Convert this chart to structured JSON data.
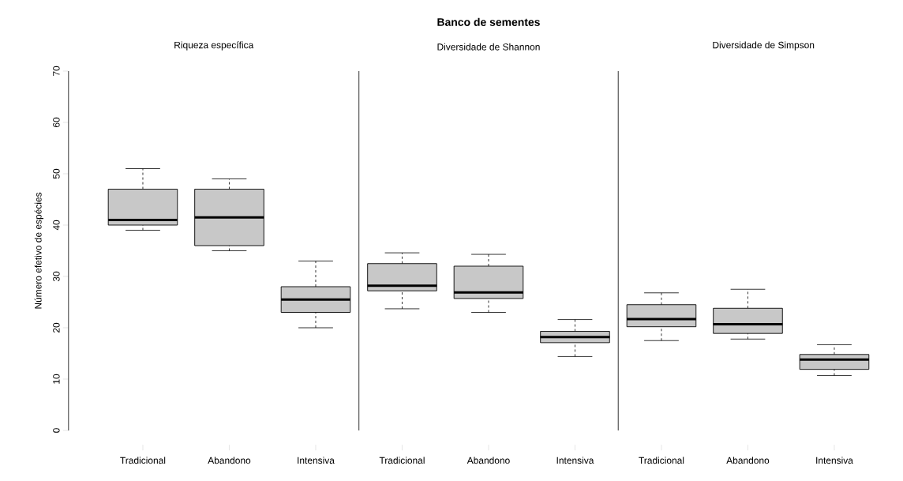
{
  "chart_data": [
    {
      "type": "box",
      "subtitle": "Riqueza específica",
      "ylabel": "Número efetivo de espécies",
      "categories": [
        "Tradicional",
        "Abandono",
        "Intensiva"
      ],
      "ylim": [
        0,
        70
      ],
      "yticks": [
        0,
        10,
        20,
        30,
        40,
        50,
        60,
        70
      ],
      "series": [
        {
          "color": "#c8c8c8",
          "boxes": [
            {
              "low": 39,
              "q1": 40,
              "median": 41,
              "q3": 47,
              "high": 51
            },
            {
              "low": 35,
              "q1": 36,
              "median": 41.5,
              "q3": 47,
              "high": 49
            },
            {
              "low": 20,
              "q1": 23,
              "median": 25.5,
              "q3": 28,
              "high": 33
            }
          ]
        }
      ]
    },
    {
      "type": "box",
      "title": "Banco de sementes",
      "subtitle": "Diversidade de Shannon",
      "categories": [
        "Tradicional",
        "Abandono",
        "Intensiva"
      ],
      "ylim": [
        0,
        70
      ],
      "tick_labels": "x",
      "series": [
        {
          "color": "#c8c8c8",
          "boxes": [
            {
              "low": 23.7,
              "q1": 27.2,
              "median": 28.2,
              "q3": 32.5,
              "high": 34.6
            },
            {
              "low": 23.0,
              "q1": 25.7,
              "median": 26.9,
              "q3": 32.0,
              "high": 34.3
            },
            {
              "low": 14.4,
              "q1": 17.1,
              "median": 18.2,
              "q3": 19.3,
              "high": 21.6
            }
          ]
        }
      ]
    },
    {
      "type": "box",
      "subtitle": "Diversidade de Simpson",
      "categories": [
        "Tradicional",
        "Abandono",
        "Intensiva"
      ],
      "ylim": [
        0,
        70
      ],
      "tick_labels": "x",
      "series": [
        {
          "color": "#c8c8c8",
          "boxes": [
            {
              "low": 17.5,
              "q1": 20.2,
              "median": 21.7,
              "q3": 24.5,
              "high": 26.8
            },
            {
              "low": 17.8,
              "q1": 18.9,
              "median": 20.7,
              "q3": 23.8,
              "high": 27.5
            },
            {
              "low": 10.7,
              "q1": 11.9,
              "median": 13.8,
              "q3": 14.8,
              "high": 16.7
            }
          ]
        }
      ]
    }
  ]
}
